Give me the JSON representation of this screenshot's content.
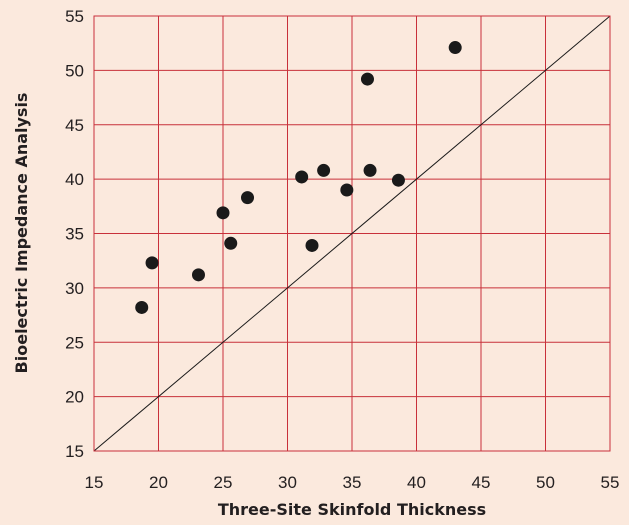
{
  "chart_data": {
    "type": "scatter",
    "title": "",
    "xlabel": "Three-Site Skinfold Thickness",
    "ylabel": "Bioelectric Impedance Analysis",
    "xlim": [
      15,
      55
    ],
    "ylim": [
      15,
      55
    ],
    "xticks": [
      "15",
      "20",
      "25",
      "30",
      "35",
      "40",
      "45",
      "50",
      "55"
    ],
    "yticks": [
      "15",
      "20",
      "25",
      "30",
      "35",
      "40",
      "45",
      "50",
      "55"
    ],
    "grid": true,
    "reference_line": "y = x",
    "points": [
      {
        "x": 18.7,
        "y": 28.2
      },
      {
        "x": 19.5,
        "y": 32.3
      },
      {
        "x": 23.1,
        "y": 31.2
      },
      {
        "x": 25.0,
        "y": 36.9
      },
      {
        "x": 25.6,
        "y": 34.1
      },
      {
        "x": 26.9,
        "y": 38.3
      },
      {
        "x": 31.1,
        "y": 40.2
      },
      {
        "x": 31.9,
        "y": 33.9
      },
      {
        "x": 32.8,
        "y": 40.8
      },
      {
        "x": 34.6,
        "y": 39.0
      },
      {
        "x": 36.2,
        "y": 49.2
      },
      {
        "x": 36.4,
        "y": 40.8
      },
      {
        "x": 38.6,
        "y": 39.9
      },
      {
        "x": 43.0,
        "y": 52.1
      }
    ]
  },
  "colors": {
    "background": "#fbe9dd",
    "grid": "#c8303a",
    "points": "#1a1a1a",
    "reference_line": "#1a1a1a",
    "text": "#231f20"
  }
}
